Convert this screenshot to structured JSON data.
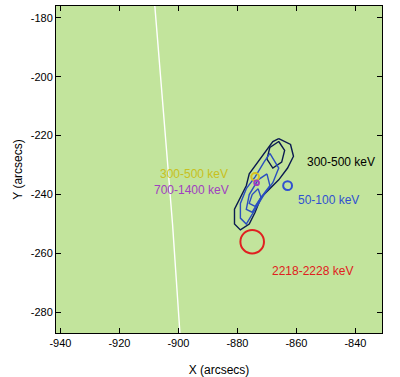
{
  "chart_data": {
    "type": "line",
    "x_label": "X (arcsecs)",
    "y_label": "Y (arcsecs)",
    "xlim": [
      -941.5,
      -831
    ],
    "ylim": [
      -287,
      -176
    ],
    "xticks": [
      -940,
      -920,
      -900,
      -880,
      -860,
      -840
    ],
    "yticks": [
      -280,
      -260,
      -240,
      -220,
      -200,
      -180
    ],
    "grid": false,
    "series": [
      {
        "color": "#ffffff",
        "line_style": "solid",
        "x": [
          -908,
          -905,
          -902,
          -899.5
        ],
        "y": [
          -176,
          -213,
          -250,
          -287
        ]
      },
      {
        "color": "#0a1a50",
        "line_style": "solid",
        "x": [
          -866,
          -862,
          -861,
          -863,
          -866,
          -869,
          -872,
          -874,
          -876,
          -879,
          -881,
          -881,
          -879,
          -877,
          -876,
          -873,
          -870,
          -868,
          -866
        ],
        "y": [
          -221,
          -223,
          -227,
          -231,
          -235,
          -238,
          -241,
          -246,
          -250,
          -252,
          -250,
          -245,
          -241,
          -237,
          -233,
          -229,
          -225,
          -222,
          -221
        ]
      },
      {
        "color": "#0a1a50",
        "line_style": "solid",
        "x": [
          -866,
          -864,
          -865,
          -868,
          -870,
          -869,
          -866
        ],
        "y": [
          -222,
          -225,
          -229,
          -231,
          -228,
          -224,
          -222
        ]
      },
      {
        "color": "#2a4fc0",
        "line_style": "solid",
        "x": [
          -869,
          -866,
          -868,
          -871,
          -874,
          -877,
          -879,
          -879,
          -877,
          -874,
          -871,
          -869
        ],
        "y": [
          -226,
          -231,
          -236,
          -240,
          -245,
          -250,
          -248,
          -243,
          -238,
          -234,
          -229,
          -226
        ]
      },
      {
        "color": "#2a4fc0",
        "line_style": "solid",
        "x": [
          -870,
          -869,
          -872,
          -875,
          -877,
          -876,
          -873,
          -870
        ],
        "y": [
          -233,
          -237,
          -241,
          -246,
          -245,
          -240,
          -235,
          -233
        ]
      },
      {
        "color": "#2a4fc0",
        "line_style": "solid",
        "x": [
          -873,
          -872,
          -874,
          -876,
          -875,
          -873
        ],
        "y": [
          -238,
          -241,
          -244,
          -243,
          -240,
          -238
        ]
      }
    ],
    "circles": [
      {
        "x": -875,
        "y": -256,
        "r": 4,
        "color": "#e02020"
      },
      {
        "x": -874,
        "y": -234,
        "r": 1.3,
        "color": "#d8c020"
      },
      {
        "x": -873.5,
        "y": -236,
        "r": 0.8,
        "color": "#a040c0"
      },
      {
        "x": -863,
        "y": -237,
        "r": 1.5,
        "color": "#3050d0"
      }
    ],
    "annotations": [
      {
        "text": "300-500 keV",
        "x": -857,
        "y": -229,
        "color": "#000000"
      },
      {
        "text": "50-100 keV",
        "x": -860,
        "y": -242,
        "color": "#3050d0"
      },
      {
        "text": "300-500 keV",
        "x": -907,
        "y": -233,
        "color": "#c8c020"
      },
      {
        "text": "700-1400 keV",
        "x": -909,
        "y": -238.5,
        "color": "#a040c0"
      },
      {
        "text": "2218-2228 keV",
        "x": -869,
        "y": -266,
        "color": "#e02020"
      }
    ]
  }
}
